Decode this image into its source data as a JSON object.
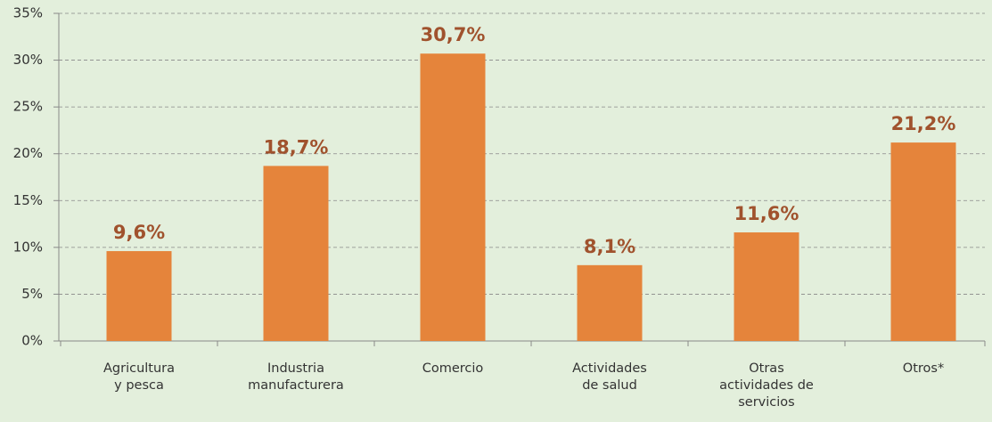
{
  "chart_data": {
    "type": "bar",
    "categories": [
      [
        "Agricultura",
        "y pesca"
      ],
      [
        "Industria",
        "manufacturera"
      ],
      [
        "Comercio"
      ],
      [
        "Actividades",
        "de salud"
      ],
      [
        "Otras",
        "actividades de",
        "servicios"
      ],
      [
        "Otros*"
      ]
    ],
    "values": [
      9.6,
      18.7,
      30.7,
      8.1,
      11.6,
      21.2
    ],
    "value_labels": [
      "9,6%",
      "18,7%",
      "30,7%",
      "8,1%",
      "11,6%",
      "21,2%"
    ],
    "color": "#e5843b",
    "ylim": [
      0,
      35
    ],
    "yticks": [
      {
        "value": 0,
        "label": "0%"
      },
      {
        "value": 5,
        "label": "5%"
      },
      {
        "value": 10,
        "label": "10%"
      },
      {
        "value": 15,
        "label": "15%"
      },
      {
        "value": 20,
        "label": "20%"
      },
      {
        "value": 25,
        "label": "25%"
      },
      {
        "value": 30,
        "label": "30%"
      },
      {
        "value": 35,
        "label": "35%"
      }
    ],
    "grid": true
  }
}
